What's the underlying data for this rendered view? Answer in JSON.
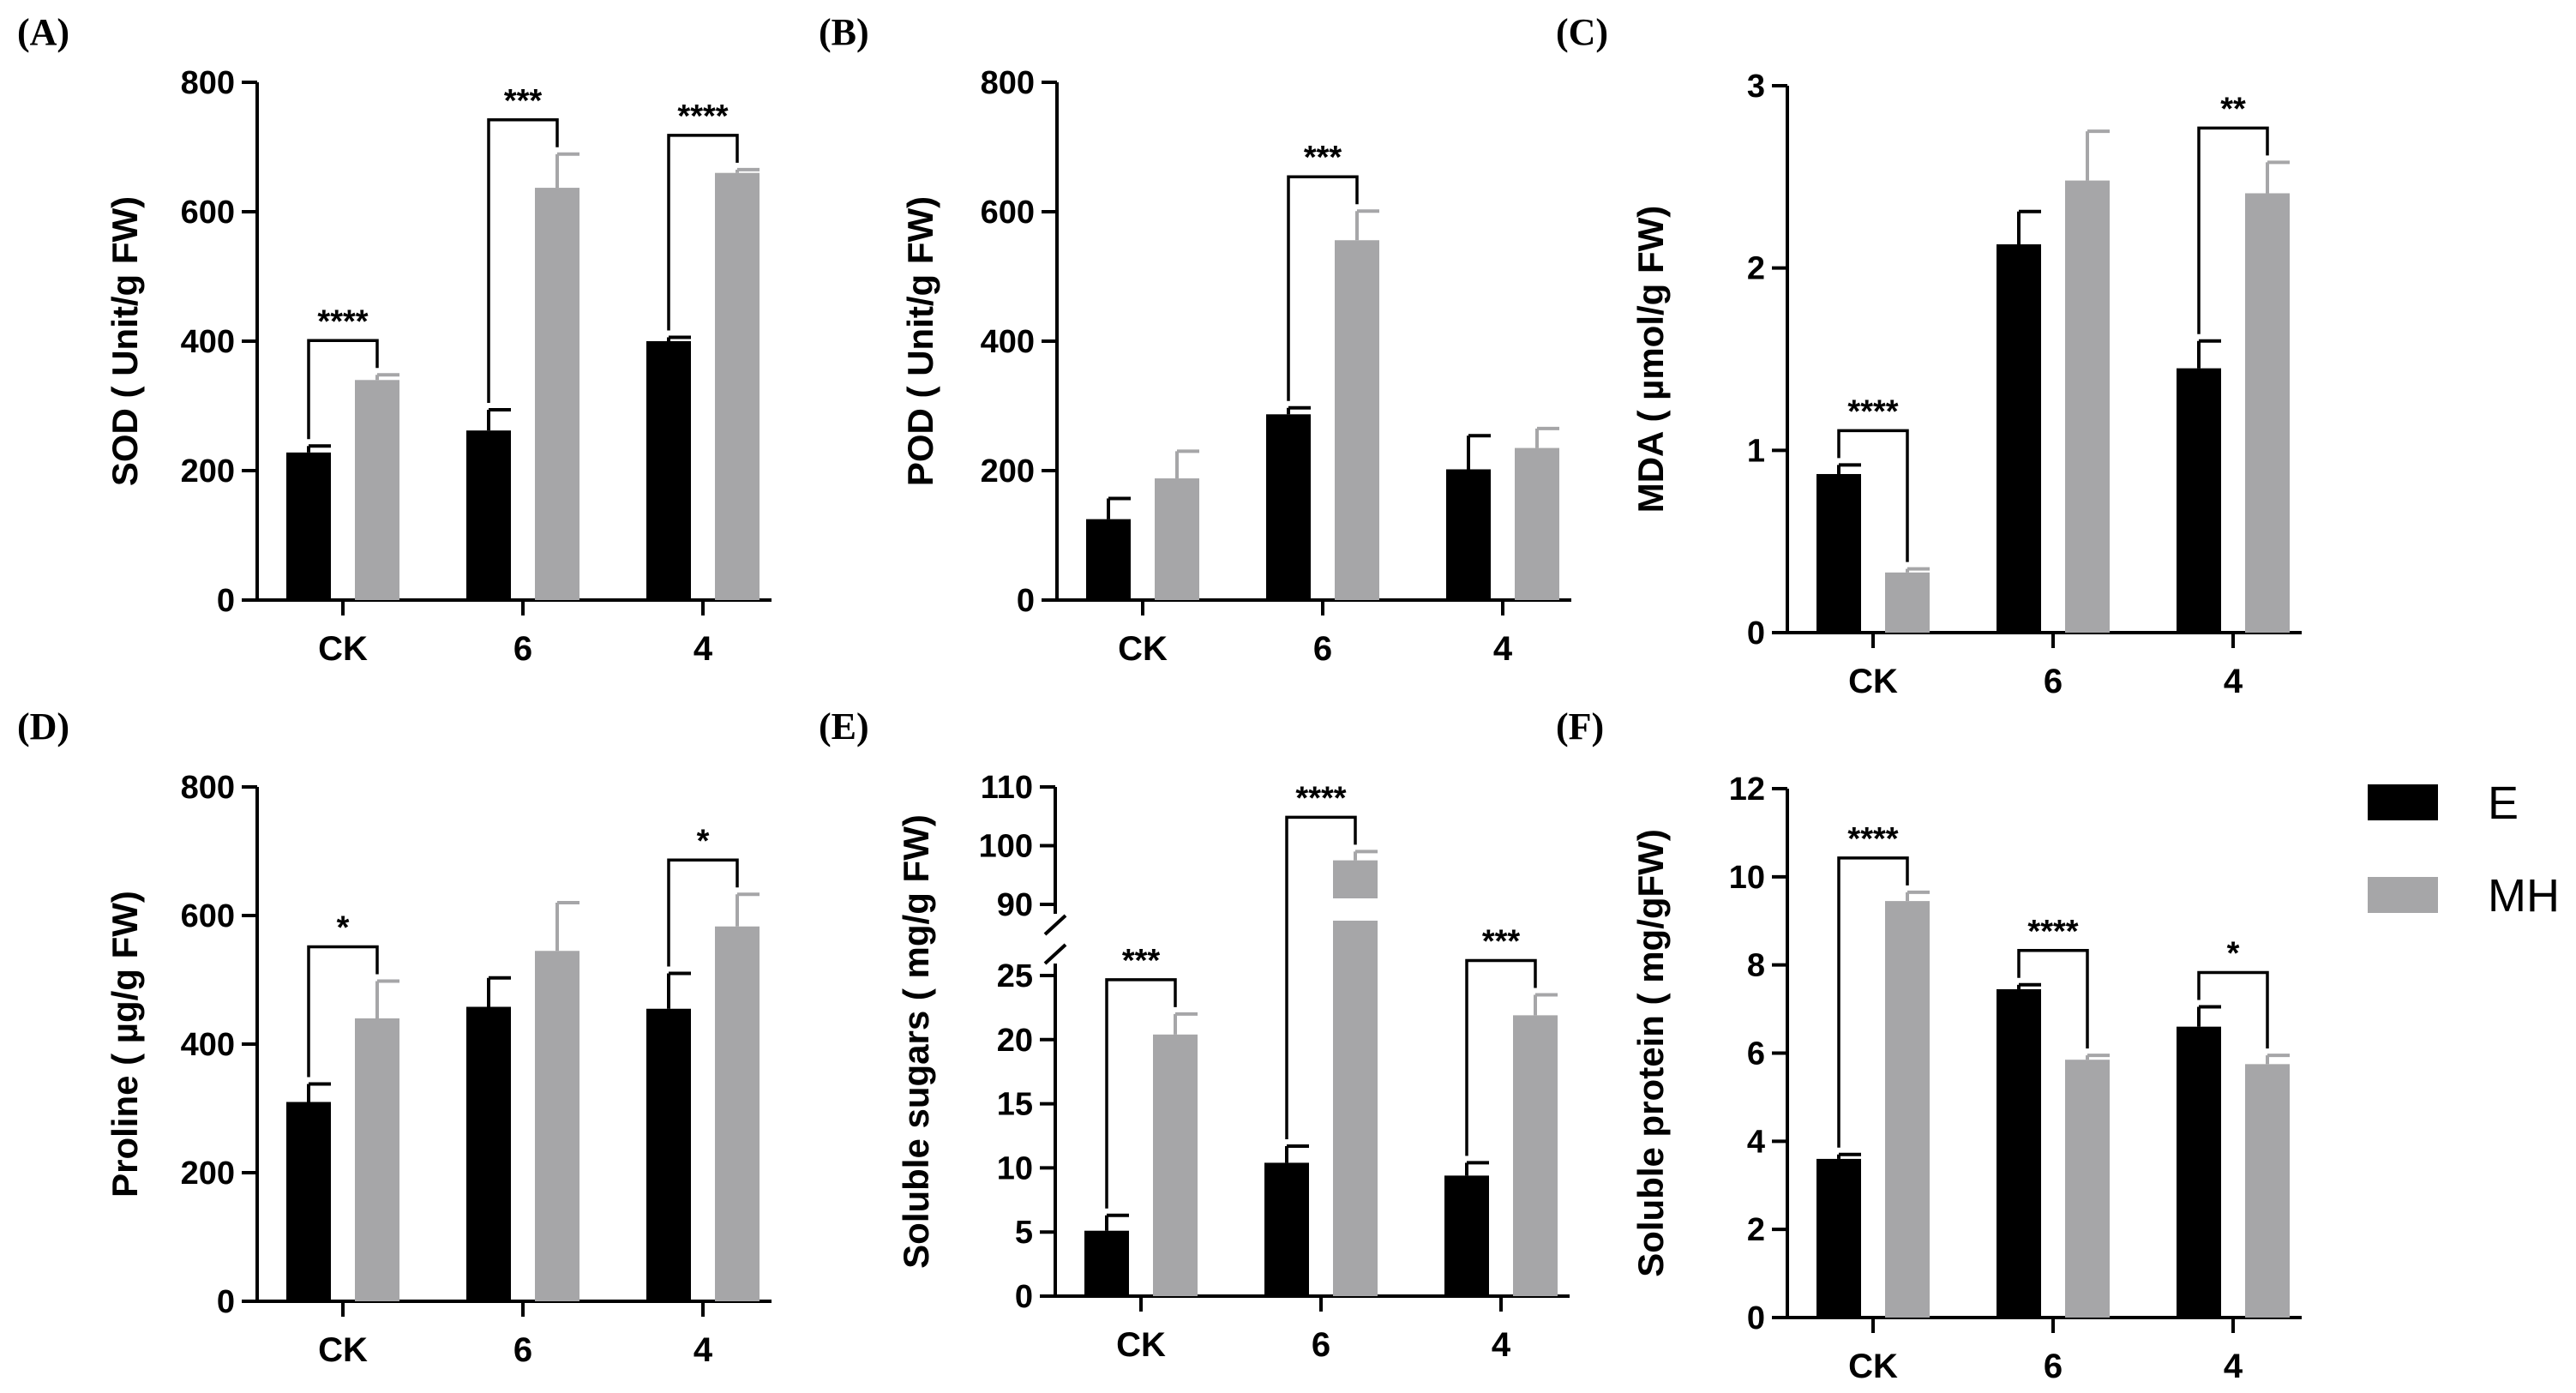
{
  "legend": [
    {
      "label": "E",
      "color": "#000000"
    },
    {
      "label": "MH",
      "color": "#a6a6a8"
    }
  ],
  "chart_data": [
    {
      "panel": "(A)",
      "type": "bar",
      "ylabel": "SOD ( Unit/g FW)",
      "categories": [
        "CK",
        "6",
        "4"
      ],
      "ylim": [
        0,
        800
      ],
      "yticks": [
        0,
        200,
        400,
        600,
        800
      ],
      "series": [
        {
          "name": "E",
          "values": [
            228,
            262,
            400
          ],
          "errors": [
            10,
            32,
            6
          ]
        },
        {
          "name": "MH",
          "values": [
            340,
            637,
            660
          ],
          "errors": [
            8,
            52,
            5
          ]
        }
      ],
      "significance": [
        {
          "category": "CK",
          "label": "****"
        },
        {
          "category": "6",
          "label": "***"
        },
        {
          "category": "4",
          "label": "****"
        }
      ]
    },
    {
      "panel": "(B)",
      "type": "bar",
      "ylabel": "POD ( Unit/g FW)",
      "categories": [
        "CK",
        "6",
        "4"
      ],
      "ylim": [
        0,
        800
      ],
      "yticks": [
        0,
        200,
        400,
        600,
        800
      ],
      "series": [
        {
          "name": "E",
          "values": [
            125,
            287,
            202
          ],
          "errors": [
            32,
            10,
            52
          ]
        },
        {
          "name": "MH",
          "values": [
            188,
            556,
            235
          ],
          "errors": [
            42,
            45,
            30
          ]
        }
      ],
      "significance": [
        {
          "category": "6",
          "label": "***"
        }
      ]
    },
    {
      "panel": "(C)",
      "type": "bar",
      "ylabel": "MDA ( µmol/g FW)",
      "categories": [
        "CK",
        "6",
        "4"
      ],
      "ylim": [
        0,
        3
      ],
      "yticks": [
        0,
        1,
        2,
        3
      ],
      "series": [
        {
          "name": "E",
          "values": [
            0.87,
            2.13,
            1.45
          ],
          "errors": [
            0.05,
            0.18,
            0.15
          ]
        },
        {
          "name": "MH",
          "values": [
            0.33,
            2.48,
            2.41
          ],
          "errors": [
            0.02,
            0.27,
            0.17
          ]
        }
      ],
      "significance": [
        {
          "category": "CK",
          "label": "****"
        },
        {
          "category": "4",
          "label": "**"
        }
      ]
    },
    {
      "panel": "(D)",
      "type": "bar",
      "ylabel": "Proline ( µg/g FW)",
      "categories": [
        "CK",
        "6",
        "4"
      ],
      "ylim": [
        0,
        800
      ],
      "yticks": [
        0,
        200,
        400,
        600,
        800
      ],
      "series": [
        {
          "name": "E",
          "values": [
            310,
            458,
            455
          ],
          "errors": [
            28,
            45,
            55
          ]
        },
        {
          "name": "MH",
          "values": [
            440,
            545,
            583
          ],
          "errors": [
            58,
            75,
            50
          ]
        }
      ],
      "significance": [
        {
          "category": "CK",
          "label": "*"
        },
        {
          "category": "4",
          "label": "*"
        }
      ]
    },
    {
      "panel": "(E)",
      "type": "bar",
      "ylabel": "Soluble sugars ( mg/g FW)",
      "categories": [
        "CK",
        "6",
        "4"
      ],
      "ylim": [
        0,
        110
      ],
      "yticks": [
        0,
        5,
        10,
        15,
        20,
        25,
        90,
        100,
        110
      ],
      "axis_break": [
        25,
        90
      ],
      "series": [
        {
          "name": "E",
          "values": [
            5.1,
            10.4,
            9.4
          ],
          "errors": [
            1.2,
            1.3,
            1.0
          ]
        },
        {
          "name": "MH",
          "values": [
            20.4,
            97.5,
            21.9
          ],
          "errors": [
            1.6,
            1.5,
            1.6
          ]
        }
      ],
      "significance": [
        {
          "category": "CK",
          "label": "***"
        },
        {
          "category": "6",
          "label": "****"
        },
        {
          "category": "4",
          "label": "***"
        }
      ]
    },
    {
      "panel": "(F)",
      "type": "bar",
      "ylabel": "Soluble protein ( mg/gFW)",
      "categories": [
        "CK",
        "6",
        "4"
      ],
      "ylim": [
        0,
        12
      ],
      "yticks": [
        0,
        2,
        4,
        6,
        8,
        10,
        12
      ],
      "series": [
        {
          "name": "E",
          "values": [
            3.6,
            7.45,
            6.6
          ],
          "errors": [
            0.1,
            0.1,
            0.45
          ]
        },
        {
          "name": "MH",
          "values": [
            9.45,
            5.85,
            5.75
          ],
          "errors": [
            0.2,
            0.1,
            0.2
          ]
        }
      ],
      "significance": [
        {
          "category": "CK",
          "label": "****"
        },
        {
          "category": "6",
          "label": "****"
        },
        {
          "category": "4",
          "label": "*"
        }
      ]
    }
  ]
}
